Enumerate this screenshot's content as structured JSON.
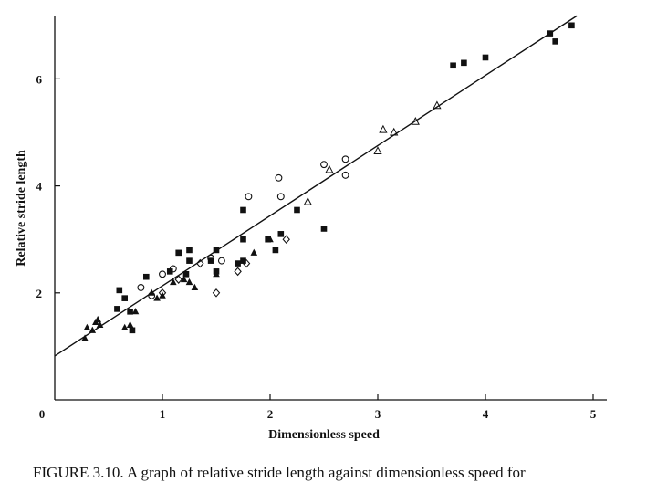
{
  "chart_data": {
    "type": "scatter",
    "title": "",
    "xlabel": "Dimensionless speed",
    "ylabel": "Relative stride length",
    "xlim": [
      0,
      5.2
    ],
    "ylim": [
      0,
      7.3
    ],
    "xticks": [
      1,
      2,
      3,
      4,
      5
    ],
    "yticks": [
      2,
      4,
      6
    ],
    "origin_label": "0",
    "grid": false,
    "colors": {
      "ink": "#111111",
      "background": "#ffffff"
    },
    "series": [
      {
        "name": "filled squares",
        "marker": "square-filled",
        "points": [
          [
            0.6,
            2.05
          ],
          [
            0.65,
            1.9
          ],
          [
            0.7,
            1.65
          ],
          [
            0.72,
            1.3
          ],
          [
            0.58,
            1.7
          ],
          [
            0.85,
            2.3
          ],
          [
            1.07,
            2.4
          ],
          [
            1.15,
            2.75
          ],
          [
            1.22,
            2.35
          ],
          [
            1.25,
            2.8
          ],
          [
            1.25,
            2.6
          ],
          [
            1.45,
            2.6
          ],
          [
            1.5,
            2.8
          ],
          [
            1.5,
            2.4
          ],
          [
            1.7,
            2.55
          ],
          [
            1.75,
            3.55
          ],
          [
            1.75,
            3.0
          ],
          [
            1.75,
            2.6
          ],
          [
            1.98,
            3.0
          ],
          [
            2.05,
            2.8
          ],
          [
            2.1,
            3.1
          ],
          [
            2.25,
            3.55
          ],
          [
            2.5,
            3.2
          ],
          [
            3.7,
            6.25
          ],
          [
            3.8,
            6.3
          ],
          [
            4.0,
            6.4
          ],
          [
            4.6,
            6.85
          ],
          [
            4.65,
            6.7
          ],
          [
            4.8,
            7.0
          ]
        ]
      },
      {
        "name": "filled triangles",
        "marker": "triangle-filled",
        "points": [
          [
            0.28,
            1.15
          ],
          [
            0.3,
            1.35
          ],
          [
            0.35,
            1.3
          ],
          [
            0.38,
            1.45
          ],
          [
            0.4,
            1.5
          ],
          [
            0.42,
            1.4
          ],
          [
            0.65,
            1.35
          ],
          [
            0.7,
            1.4
          ],
          [
            0.75,
            1.65
          ],
          [
            0.9,
            2.0
          ],
          [
            0.95,
            1.9
          ],
          [
            1.0,
            1.95
          ],
          [
            1.1,
            2.2
          ],
          [
            1.2,
            2.25
          ],
          [
            1.25,
            2.2
          ],
          [
            1.3,
            2.1
          ],
          [
            1.5,
            2.35
          ],
          [
            1.85,
            2.75
          ],
          [
            2.0,
            3.0
          ]
        ]
      },
      {
        "name": "open circles",
        "marker": "circle-open",
        "points": [
          [
            0.8,
            2.1
          ],
          [
            0.9,
            1.95
          ],
          [
            1.0,
            2.35
          ],
          [
            1.1,
            2.45
          ],
          [
            1.45,
            2.65
          ],
          [
            1.55,
            2.6
          ],
          [
            1.8,
            3.8
          ],
          [
            2.08,
            4.15
          ],
          [
            2.1,
            3.8
          ],
          [
            2.5,
            4.4
          ],
          [
            2.7,
            4.5
          ],
          [
            2.7,
            4.2
          ]
        ]
      },
      {
        "name": "open diamonds",
        "marker": "diamond-open",
        "points": [
          [
            1.0,
            2.0
          ],
          [
            1.15,
            2.25
          ],
          [
            1.35,
            2.55
          ],
          [
            1.5,
            2.0
          ],
          [
            1.7,
            2.4
          ],
          [
            1.78,
            2.55
          ],
          [
            2.15,
            3.0
          ]
        ]
      },
      {
        "name": "open triangles",
        "marker": "triangle-open",
        "points": [
          [
            2.35,
            3.7
          ],
          [
            2.55,
            4.3
          ],
          [
            3.0,
            4.65
          ],
          [
            3.05,
            5.05
          ],
          [
            3.15,
            5.0
          ],
          [
            3.35,
            5.2
          ],
          [
            3.55,
            5.5
          ]
        ]
      }
    ],
    "fit_line": {
      "x": [
        0,
        4.85
      ],
      "y": [
        0.82,
        7.18
      ]
    }
  },
  "caption": "FIGURE 3.10. A graph of relative stride length against dimensionless speed for"
}
